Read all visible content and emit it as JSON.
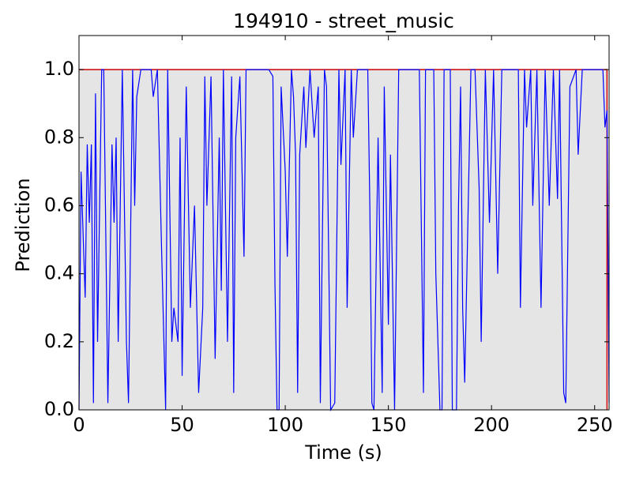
{
  "chart_data": {
    "type": "line",
    "title": "194910 - street_music",
    "x_label": "Time (s)",
    "y_label": "Prediction",
    "xlim": [
      0,
      257
    ],
    "ylim": [
      0,
      1.1
    ],
    "xticks": [
      0,
      50,
      100,
      150,
      200,
      250
    ],
    "yticks": [
      {
        "value": 0,
        "label": "0.0"
      },
      {
        "value": 0.2,
        "label": "0.2"
      },
      {
        "value": 0.4,
        "label": "0.4"
      },
      {
        "value": 0.6,
        "label": "0.6"
      },
      {
        "value": 0.8,
        "label": "0.8"
      },
      {
        "value": 1,
        "label": "1.0"
      }
    ],
    "series": [
      {
        "color": "#cc0000",
        "fill": "#e5e5e5",
        "x": [
          0,
          256,
          256
        ],
        "values": [
          1,
          1,
          0
        ]
      },
      {
        "color": "#0000ff",
        "x": [
          0,
          1,
          3,
          4,
          5,
          6,
          7,
          8,
          9,
          11,
          12,
          14,
          16,
          17,
          18,
          19,
          21,
          23,
          24,
          26,
          27,
          28,
          30,
          35,
          36,
          38,
          40,
          42,
          43,
          45,
          46,
          48,
          49,
          50,
          52,
          54,
          56,
          58,
          60,
          61,
          62,
          64,
          66,
          68,
          69,
          70,
          72,
          74,
          75,
          76,
          78,
          80,
          81,
          92,
          94,
          95,
          96,
          97,
          98,
          100,
          101,
          103,
          104,
          105,
          106,
          107,
          109,
          110,
          112,
          114,
          116,
          117,
          119,
          120,
          122,
          124,
          126,
          127,
          129,
          130,
          132,
          133,
          135,
          140,
          141,
          142,
          143,
          145,
          147,
          148,
          150,
          151,
          153,
          155,
          165,
          167,
          168,
          172,
          173,
          175,
          176,
          177,
          180,
          181,
          183,
          184,
          185,
          186,
          187,
          190,
          192,
          194,
          195,
          197,
          199,
          201,
          203,
          205,
          213,
          214,
          216,
          217,
          219,
          220,
          222,
          224,
          226,
          228,
          230,
          232,
          233,
          235,
          236,
          238,
          241,
          242,
          244,
          254,
          255,
          256,
          257
        ],
        "values": [
          0,
          0.7,
          0.33,
          0.78,
          0.55,
          0.78,
          0.02,
          0.93,
          0.2,
          1,
          1,
          0.02,
          0.78,
          0.55,
          0.8,
          0.2,
          1,
          0.2,
          0.02,
          1,
          0.6,
          0.92,
          1,
          1,
          0.92,
          1,
          0.48,
          0,
          1,
          0.2,
          0.3,
          0.2,
          0.8,
          0.1,
          0.95,
          0.3,
          0.6,
          0.05,
          0.3,
          0.98,
          0.6,
          0.98,
          0.15,
          0.8,
          0.35,
          1,
          0.2,
          0.98,
          0.05,
          0.8,
          0.98,
          0.45,
          1,
          1,
          0.98,
          0.37,
          0,
          0,
          0.95,
          0.7,
          0.45,
          1,
          0.92,
          0.75,
          0.05,
          0.75,
          0.95,
          0.77,
          1,
          0.8,
          0.95,
          0.02,
          1,
          0.95,
          0,
          0.02,
          1,
          0.72,
          1,
          0.3,
          1,
          0.8,
          1,
          1,
          0.6,
          0.02,
          0,
          0.8,
          0.05,
          0.95,
          0.25,
          0.75,
          0,
          1,
          1,
          0.05,
          1,
          1,
          0.4,
          0,
          0,
          1,
          1,
          0,
          0,
          0.6,
          0.95,
          0.3,
          0.08,
          1,
          1,
          0.65,
          0.2,
          1,
          0.55,
          1,
          0.4,
          1,
          1,
          0.3,
          1,
          0.83,
          1,
          0.6,
          1,
          0.3,
          1,
          0.6,
          1,
          0.62,
          1,
          0.05,
          0.02,
          0.95,
          1,
          0.75,
          1,
          1,
          0.83,
          0.88,
          0.02
        ]
      }
    ]
  }
}
